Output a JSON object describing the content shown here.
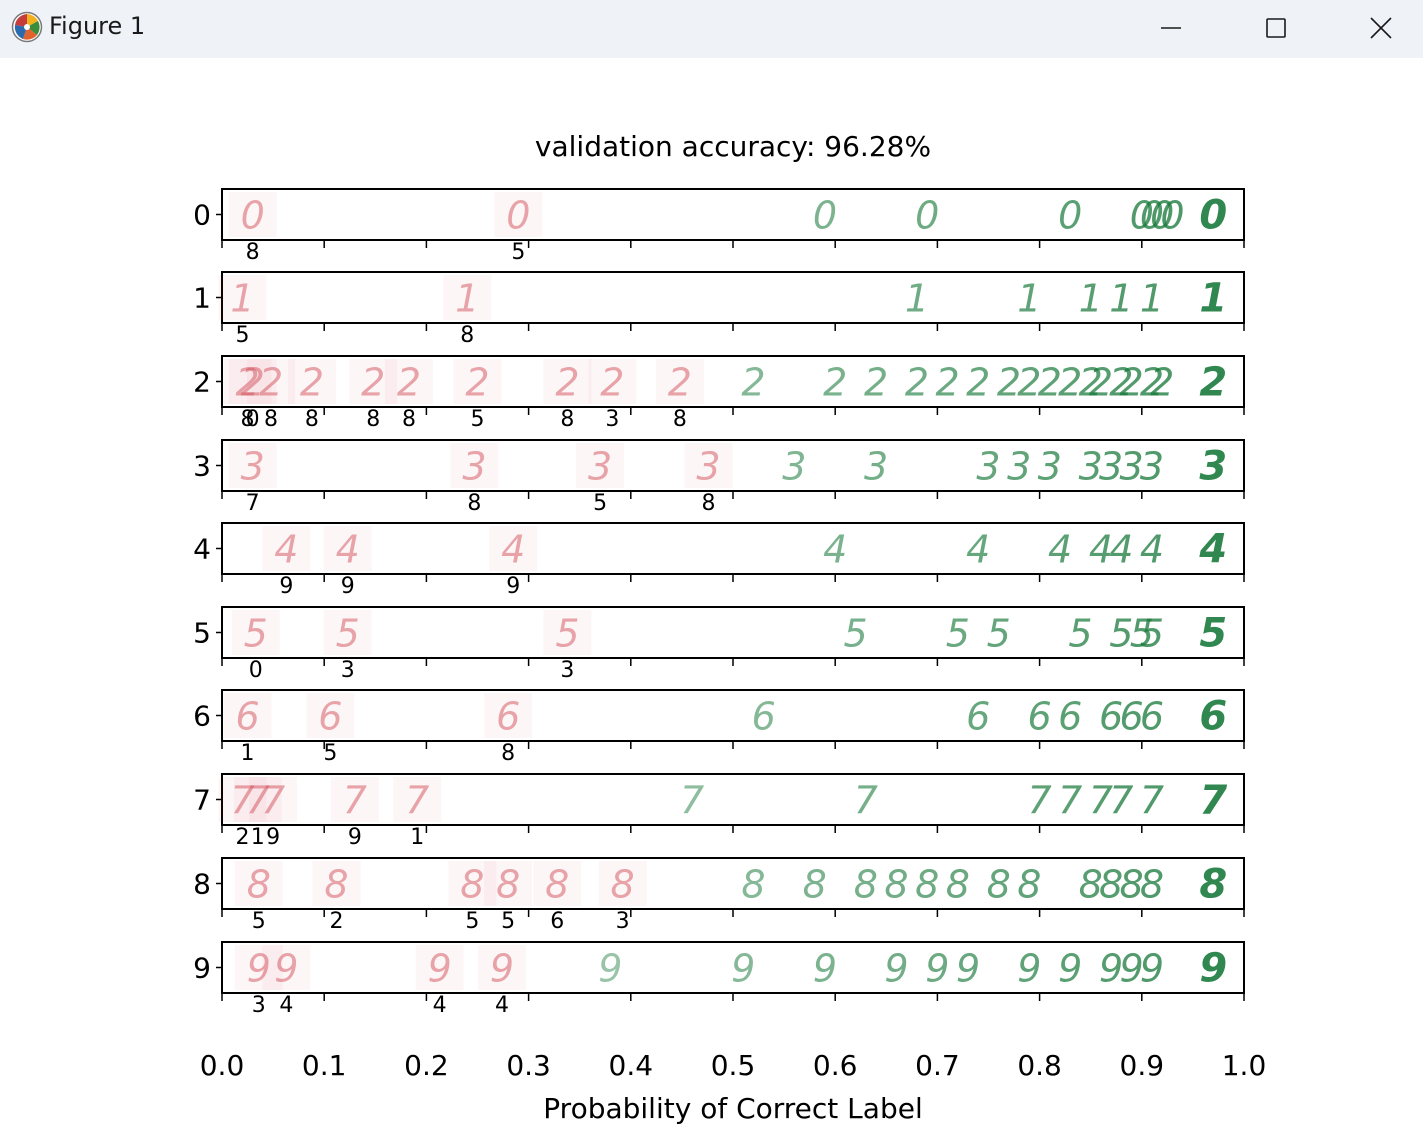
{
  "window": {
    "title": "Figure 1",
    "controls": {
      "minimize": "minimize-icon",
      "maximize": "maximize-icon",
      "close": "close-icon"
    }
  },
  "colors": {
    "correct": "#1a7a3c",
    "incorrect": "#d2505a",
    "axis": "#000000",
    "background": "#ffffff",
    "titlebar": "#eff3f8"
  },
  "chart_data": {
    "type": "scatter",
    "title": "validation accuracy: 96.28%",
    "xlabel": "Probability of Correct Label",
    "ylabel": "",
    "xlim": [
      0.0,
      1.0
    ],
    "x_ticks": [
      "0.0",
      "0.1",
      "0.2",
      "0.3",
      "0.4",
      "0.5",
      "0.6",
      "0.7",
      "0.8",
      "0.9",
      "1.0"
    ],
    "rows": [
      {
        "label": "0",
        "incorrect": [
          {
            "x": 0.03,
            "pred": "8"
          },
          {
            "x": 0.29,
            "pred": "5"
          }
        ],
        "correct": [
          0.59,
          0.69,
          0.83,
          0.9,
          0.91,
          0.92,
          0.93,
          0.97
        ]
      },
      {
        "label": "1",
        "incorrect": [
          {
            "x": 0.02,
            "pred": "5"
          },
          {
            "x": 0.24,
            "pred": "8"
          }
        ],
        "correct": [
          0.68,
          0.79,
          0.85,
          0.88,
          0.91,
          0.97
        ]
      },
      {
        "label": "2",
        "incorrect": [
          {
            "x": 0.025,
            "pred": "8"
          },
          {
            "x": 0.03,
            "pred": "0"
          },
          {
            "x": 0.048,
            "pred": "8"
          },
          {
            "x": 0.088,
            "pred": "8"
          },
          {
            "x": 0.148,
            "pred": "8"
          },
          {
            "x": 0.183,
            "pred": "8"
          },
          {
            "x": 0.25,
            "pred": "5"
          },
          {
            "x": 0.338,
            "pred": "8"
          },
          {
            "x": 0.382,
            "pred": "3"
          },
          {
            "x": 0.448,
            "pred": "8"
          }
        ],
        "correct": [
          0.52,
          0.6,
          0.64,
          0.68,
          0.71,
          0.74,
          0.77,
          0.79,
          0.81,
          0.83,
          0.85,
          0.86,
          0.88,
          0.89,
          0.91,
          0.92,
          0.97
        ]
      },
      {
        "label": "3",
        "incorrect": [
          {
            "x": 0.03,
            "pred": "7"
          },
          {
            "x": 0.247,
            "pred": "8"
          },
          {
            "x": 0.37,
            "pred": "5"
          },
          {
            "x": 0.476,
            "pred": "8"
          }
        ],
        "correct": [
          0.56,
          0.64,
          0.75,
          0.78,
          0.81,
          0.85,
          0.87,
          0.89,
          0.91,
          0.97
        ]
      },
      {
        "label": "4",
        "incorrect": [
          {
            "x": 0.063,
            "pred": "9"
          },
          {
            "x": 0.123,
            "pred": "9"
          },
          {
            "x": 0.285,
            "pred": "9"
          }
        ],
        "correct": [
          0.6,
          0.74,
          0.82,
          0.86,
          0.88,
          0.91,
          0.97
        ]
      },
      {
        "label": "5",
        "incorrect": [
          {
            "x": 0.033,
            "pred": "0"
          },
          {
            "x": 0.123,
            "pred": "3"
          },
          {
            "x": 0.338,
            "pred": "3"
          }
        ],
        "correct": [
          0.62,
          0.72,
          0.76,
          0.84,
          0.88,
          0.9,
          0.91,
          0.97
        ]
      },
      {
        "label": "6",
        "incorrect": [
          {
            "x": 0.025,
            "pred": "1"
          },
          {
            "x": 0.106,
            "pred": "5"
          },
          {
            "x": 0.28,
            "pred": "8"
          }
        ],
        "correct": [
          0.53,
          0.74,
          0.8,
          0.83,
          0.87,
          0.89,
          0.91,
          0.97
        ]
      },
      {
        "label": "7",
        "incorrect": [
          {
            "x": 0.02,
            "pred": "2"
          },
          {
            "x": 0.035,
            "pred": "1"
          },
          {
            "x": 0.05,
            "pred": "9"
          },
          {
            "x": 0.13,
            "pred": "9"
          },
          {
            "x": 0.191,
            "pred": "1"
          }
        ],
        "correct": [
          0.46,
          0.63,
          0.8,
          0.83,
          0.86,
          0.88,
          0.91,
          0.97
        ]
      },
      {
        "label": "8",
        "incorrect": [
          {
            "x": 0.036,
            "pred": "5"
          },
          {
            "x": 0.112,
            "pred": "2"
          },
          {
            "x": 0.245,
            "pred": "5"
          },
          {
            "x": 0.28,
            "pred": "5"
          },
          {
            "x": 0.328,
            "pred": "6"
          },
          {
            "x": 0.392,
            "pred": "3"
          }
        ],
        "correct": [
          0.52,
          0.58,
          0.63,
          0.66,
          0.69,
          0.72,
          0.76,
          0.79,
          0.85,
          0.87,
          0.89,
          0.91,
          0.97
        ]
      },
      {
        "label": "9",
        "incorrect": [
          {
            "x": 0.036,
            "pred": "3"
          },
          {
            "x": 0.063,
            "pred": "4"
          },
          {
            "x": 0.213,
            "pred": "4"
          },
          {
            "x": 0.274,
            "pred": "4"
          }
        ],
        "correct": [
          0.38,
          0.51,
          0.59,
          0.66,
          0.7,
          0.73,
          0.79,
          0.83,
          0.87,
          0.89,
          0.91,
          0.97
        ]
      }
    ]
  }
}
